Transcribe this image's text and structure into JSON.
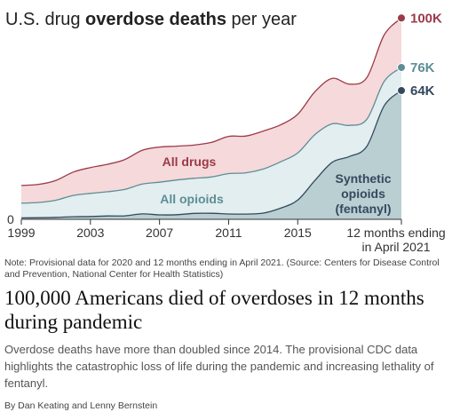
{
  "chart_data": {
    "type": "area",
    "title_prefix": "U.S. drug ",
    "title_bold": "overdose deaths",
    "title_suffix": " per year",
    "x": [
      1999,
      2000,
      2001,
      2002,
      2003,
      2004,
      2005,
      2006,
      2007,
      2008,
      2009,
      2010,
      2011,
      2012,
      2013,
      2014,
      2015,
      2016,
      2017,
      2018,
      2019,
      2020,
      2021
    ],
    "x_ticks": [
      {
        "x": 1999,
        "label": "1999"
      },
      {
        "x": 2003,
        "label": "2003"
      },
      {
        "x": 2007,
        "label": "2007"
      },
      {
        "x": 2011,
        "label": "2011"
      },
      {
        "x": 2015,
        "label": "2015"
      }
    ],
    "last_tick_label": [
      "12 months ending",
      "in April 2021"
    ],
    "y_zero_label": "0",
    "ylim": [
      0,
      100000
    ],
    "series": [
      {
        "name": "All drugs",
        "color": "#f6d9da",
        "line": "#9b3a48",
        "values": [
          16849,
          17415,
          19394,
          23518,
          25785,
          27424,
          29813,
          34425,
          36010,
          36450,
          37004,
          38329,
          41340,
          41502,
          43982,
          47055,
          52404,
          63632,
          70237,
          67367,
          70630,
          91799,
          100306
        ],
        "end_label": "100K"
      },
      {
        "name": "All opioids",
        "color": "#e2eeef",
        "line": "#5e8d96",
        "values": [
          8050,
          8407,
          9496,
          11920,
          12940,
          13756,
          14918,
          17545,
          18516,
          19582,
          20422,
          21089,
          22784,
          23166,
          25052,
          28647,
          33091,
          42249,
          47600,
          46802,
          49860,
          68630,
          75673
        ],
        "end_label": "76K"
      },
      {
        "name": "Synthetic opioids (fentanyl)",
        "label_lines": [
          "Synthetic",
          "opioids",
          "(fentanyl)"
        ],
        "color": "#b9cfd1",
        "line": "#34495e",
        "values": [
          730,
          782,
          957,
          1295,
          1400,
          1664,
          1742,
          2707,
          2213,
          2306,
          2946,
          3007,
          2666,
          2628,
          3105,
          5544,
          9580,
          19413,
          28466,
          31335,
          36359,
          56516,
          64178
        ],
        "end_label": "64K"
      }
    ],
    "grid": false,
    "legend": "inline"
  },
  "note": "Note: Provisional data for 2020 and 12 months ending in April 2021. (Source: Centers for Disease Control and Prevention, National Center for Health Statistics)",
  "headline": "100,000 Americans died of overdoses in 12 months during pandemic",
  "deck": "Overdose deaths have more than doubled since 2014. The provisional CDC data highlights the catastrophic loss of life during the pandemic and increasing lethality of fentanyl.",
  "byline": "By Dan Keating and Lenny Bernstein"
}
